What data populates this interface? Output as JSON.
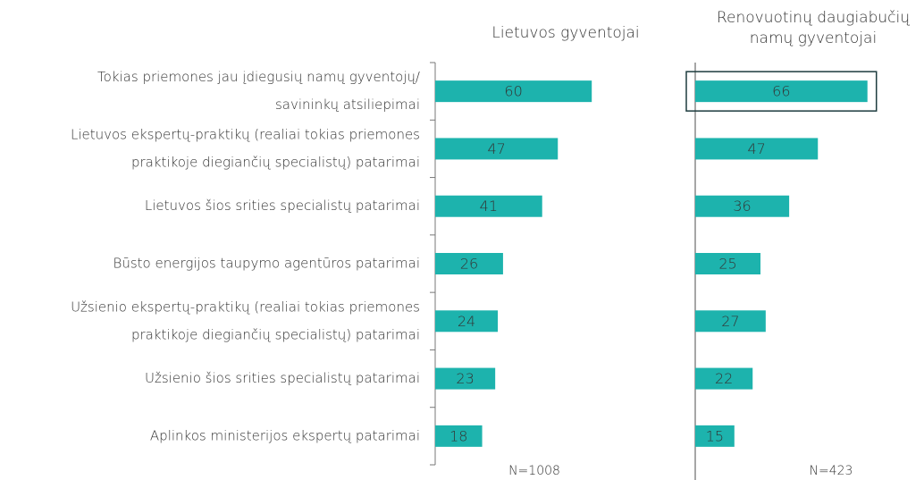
{
  "chart_data": {
    "type": "bar",
    "orientation": "horizontal",
    "categories": [
      [
        "Tokias priemones jau įdiegusių namų gyventojų/",
        "savininkų atsiliepimai"
      ],
      [
        "Lietuvos ekspertų-praktikų (realiai tokias priemones",
        "praktikoje diegiančių specialistų) patarimai"
      ],
      [
        "Lietuvos  šios srities specialistų patarimai"
      ],
      [
        "Būsto energijos taupymo agentūros patarimai"
      ],
      [
        "Užsienio ekspertų-praktikų (realiai tokias priemones",
        "praktikoje diegiančių specialistų) patarimai"
      ],
      [
        "Užsienio  šios srities specialistų patarimai"
      ],
      [
        "Aplinkos ministerijos ekspertų patarimai"
      ]
    ],
    "series": [
      {
        "name": [
          "Lietuvos gyventojai"
        ],
        "color": "#1db3ad",
        "values": [
          60,
          47,
          41,
          26,
          24,
          23,
          18
        ],
        "sample_size": "N=1008"
      },
      {
        "name": [
          "Renovuotinų daugiabučių",
          "namų gyventojai"
        ],
        "color": "#1db3ad",
        "values": [
          66,
          47,
          36,
          25,
          27,
          22,
          15
        ],
        "sample_size": "N=423",
        "highlight_index": 0
      }
    ],
    "xlim": [
      0,
      100
    ]
  }
}
